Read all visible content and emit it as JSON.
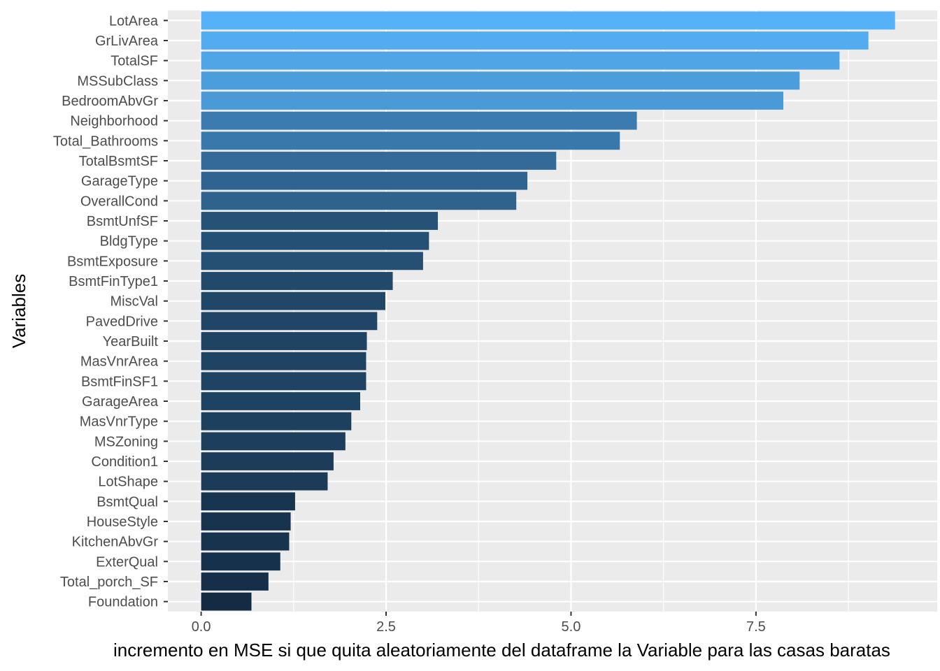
{
  "chart_data": {
    "type": "bar",
    "orientation": "horizontal",
    "xlabel": "incremento en MSE si que quita aleatoriamente del dataframe la Variable para las casas baratas",
    "ylabel": "Variables",
    "xlim": [
      -0.45,
      9.95
    ],
    "xticks": [
      0.0,
      2.5,
      5.0,
      7.5
    ],
    "xtick_labels": [
      "0.0",
      "2.5",
      "5.0",
      "7.5"
    ],
    "grid": true,
    "legend": "none",
    "colors": {
      "panel": "#ebebeb",
      "grid": "#ffffff",
      "bar_low": "#132b43",
      "bar_high": "#56b1f7"
    },
    "categories": [
      "LotArea",
      "GrLivArea",
      "TotalSF",
      "MSSubClass",
      "BedroomAbvGr",
      "Neighborhood",
      "Total_Bathrooms",
      "TotalBsmtSF",
      "GarageType",
      "OverallCond",
      "BsmtUnfSF",
      "BldgType",
      "BsmtExposure",
      "BsmtFinType1",
      "MiscVal",
      "PavedDrive",
      "YearBuilt",
      "MasVnrArea",
      "BsmtFinSF1",
      "GarageArea",
      "MasVnrType",
      "MSZoning",
      "Condition1",
      "LotShape",
      "BsmtQual",
      "HouseStyle",
      "KitchenAbvGr",
      "ExterQual",
      "Total_porch_SF",
      "Foundation"
    ],
    "values": [
      9.38,
      9.02,
      8.63,
      8.09,
      7.87,
      5.89,
      5.66,
      4.8,
      4.41,
      4.26,
      3.2,
      3.08,
      3.0,
      2.59,
      2.49,
      2.38,
      2.24,
      2.23,
      2.23,
      2.15,
      2.03,
      1.95,
      1.79,
      1.71,
      1.27,
      1.21,
      1.19,
      1.07,
      0.91,
      0.68
    ]
  }
}
